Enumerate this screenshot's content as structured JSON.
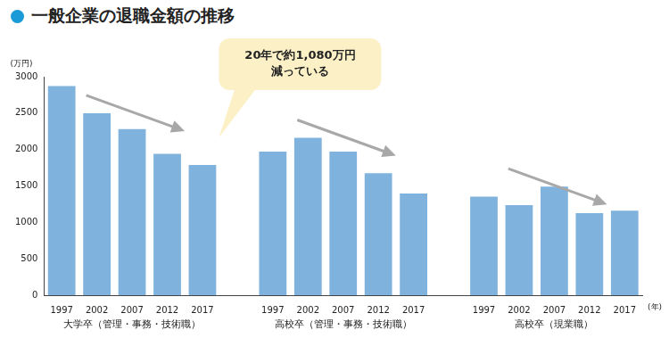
{
  "chart_data": {
    "type": "bar",
    "title": "一般企業の退職金額の推移",
    "y_label": "(万円)",
    "x_label": "(年)",
    "annotation": "20年で約1,080万円\n減っている",
    "categories": [
      "1997",
      "2002",
      "2007",
      "2012",
      "2017",
      null,
      "1997",
      "2002",
      "2007",
      "2012",
      "2017",
      null,
      "1997",
      "2002",
      "2007",
      "2012",
      "2017"
    ],
    "values": [
      2871,
      2499,
      2280,
      1941,
      1788,
      null,
      1970,
      2161,
      1970,
      1673,
      1396,
      null,
      1354,
      1236,
      1492,
      1128,
      1159
    ],
    "groups": [
      "大学卒（管理・事務・技術職）",
      "高校卒（管理・事務・技術職）",
      "高校卒（現業職）"
    ],
    "color": "#7fb2dc",
    "ylim": [
      0,
      3000
    ],
    "yticks": [
      0,
      500,
      1000,
      1500,
      2000,
      2500,
      3000
    ],
    "grid": false
  }
}
